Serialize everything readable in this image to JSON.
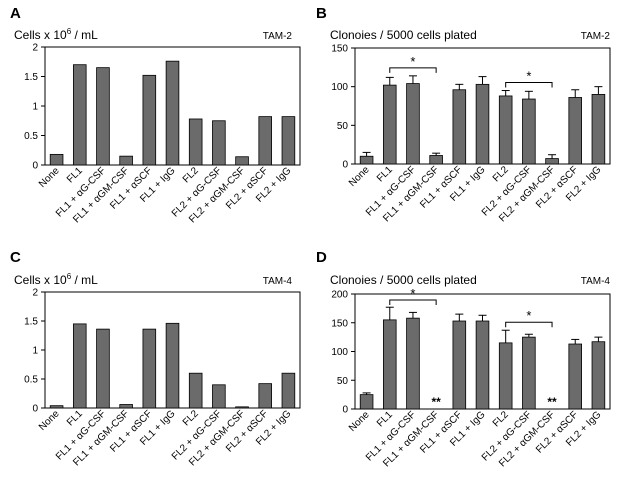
{
  "chart_data": [
    {
      "panel": "A",
      "type": "bar",
      "title": "Cells x 10^6 / mL",
      "title_main": "Cells x 10",
      "title_sup": "6",
      "title_rest": " / mL",
      "tag": "TAM-2",
      "categories": [
        "None",
        "FL1",
        "FL1 + αG-CSF",
        "FL1 + αGM-CSF",
        "FL1 + αSCF",
        "FL1 + IgG",
        "FL2",
        "FL2 + αG-CSF",
        "FL2 + αGM-CSF",
        "FL2 + αSCF",
        "FL2 + IgG"
      ],
      "values": [
        0.18,
        1.7,
        1.65,
        0.15,
        1.52,
        1.76,
        0.78,
        0.75,
        0.14,
        0.82,
        0.82
      ],
      "ylim": [
        0,
        2
      ],
      "yticks": [
        "0",
        "0.5",
        "1",
        "1.5",
        "2"
      ],
      "ytick_values": [
        0,
        0.5,
        1,
        1.5,
        2
      ]
    },
    {
      "panel": "B",
      "type": "bar",
      "title": "Clonoies / 5000 cells plated",
      "tag": "TAM-2",
      "categories": [
        "None",
        "FL1",
        "FL1 + αG-CSF",
        "FL1 + αGM-CSF",
        "FL1 + αSCF",
        "FL1 + IgG",
        "FL2",
        "FL2 + αG-CSF",
        "FL2 + αGM-CSF",
        "FL2 + αSCF",
        "FL2 + IgG"
      ],
      "values": [
        10,
        102,
        104,
        11,
        96,
        103,
        88,
        84,
        7,
        86,
        90
      ],
      "errors": [
        5,
        10,
        10,
        3,
        7,
        10,
        7,
        10,
        5,
        10,
        10
      ],
      "ylim": [
        0,
        150
      ],
      "yticks": [
        "0",
        "50",
        "100",
        "150"
      ],
      "ytick_values": [
        0,
        50,
        100,
        150
      ],
      "significance": [
        {
          "from": 1,
          "to": 3,
          "label": "*"
        },
        {
          "from": 6,
          "to": 8,
          "label": "*"
        }
      ]
    },
    {
      "panel": "C",
      "type": "bar",
      "title": "Cells x 10^6 / mL",
      "title_main": "Cells x 10",
      "title_sup": "6",
      "title_rest": " / mL",
      "tag": "TAM-4",
      "categories": [
        "None",
        "FL1",
        "FL1 + αG-CSF",
        "FL1 + αGM-CSF",
        "FL1 + αSCF",
        "FL1 + IgG",
        "FL2",
        "FL2 + αG-CSF",
        "FL2 + αGM-CSF",
        "FL2 + αSCF",
        "FL2 + IgG"
      ],
      "values": [
        0.04,
        1.45,
        1.36,
        0.06,
        1.36,
        1.46,
        0.6,
        0.4,
        0.02,
        0.42,
        0.6
      ],
      "ylim": [
        0,
        2
      ],
      "yticks": [
        "0",
        "0.5",
        "1",
        "1.5",
        "2"
      ],
      "ytick_values": [
        0,
        0.5,
        1,
        1.5,
        2
      ]
    },
    {
      "panel": "D",
      "type": "bar",
      "title": "Clonoies / 5000 cells plated",
      "tag": "TAM-4",
      "categories": [
        "None",
        "FL1",
        "FL1 + αG-CSF",
        "FL1 + αGM-CSF",
        "FL1 + αSCF",
        "FL1 + IgG",
        "FL2",
        "FL2 + αG-CSF",
        "FL2 + αGM-CSF",
        "FL2 + αSCF",
        "FL2 + IgG"
      ],
      "values": [
        25,
        155,
        158,
        0,
        153,
        153,
        115,
        125,
        0,
        113,
        117
      ],
      "errors": [
        3,
        22,
        10,
        0,
        12,
        10,
        22,
        5,
        0,
        8,
        8
      ],
      "bar_labels": [
        "",
        "",
        "",
        "**",
        "",
        "",
        "",
        "",
        "**",
        "",
        ""
      ],
      "ylim": [
        0,
        200
      ],
      "yticks": [
        "0",
        "50",
        "100",
        "150",
        "200"
      ],
      "ytick_values": [
        0,
        50,
        100,
        150,
        200
      ],
      "significance": [
        {
          "from": 1,
          "to": 3,
          "label": "*"
        },
        {
          "from": 6,
          "to": 8,
          "label": "*"
        }
      ]
    }
  ],
  "colors": {
    "bar_fill": "#6b6b6b",
    "bar_stroke": "#000000",
    "axis": "#000000"
  }
}
